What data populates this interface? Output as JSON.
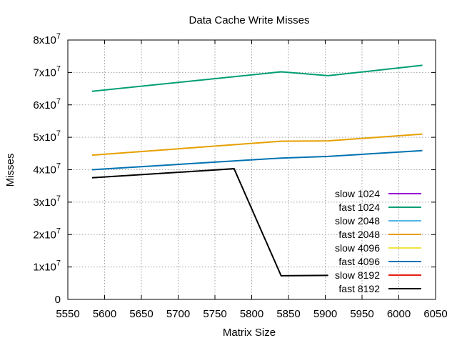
{
  "chart_data": {
    "type": "line",
    "title": "Data Cache Write Misses",
    "xlabel": "Matrix Size",
    "ylabel": "Misses",
    "xlim": [
      5550,
      6050
    ],
    "ylim": [
      0,
      80000000
    ],
    "xticks": [
      5550,
      5600,
      5650,
      5700,
      5750,
      5800,
      5850,
      5900,
      5950,
      6000,
      6050
    ],
    "xtick_labels": [
      "5550",
      "5600",
      "5650",
      "5700",
      "5750",
      "5800",
      "5850",
      "5900",
      "5950",
      "6000",
      "6050"
    ],
    "yticks": [
      {
        "value": 0,
        "mantissa": "0",
        "base": "",
        "exp": ""
      },
      {
        "value": 10000000,
        "mantissa": "1",
        "base": "x10",
        "exp": "7"
      },
      {
        "value": 20000000,
        "mantissa": "2",
        "base": "x10",
        "exp": "7"
      },
      {
        "value": 30000000,
        "mantissa": "3",
        "base": "x10",
        "exp": "7"
      },
      {
        "value": 40000000,
        "mantissa": "4",
        "base": "x10",
        "exp": "7"
      },
      {
        "value": 50000000,
        "mantissa": "5",
        "base": "x10",
        "exp": "7"
      },
      {
        "value": 60000000,
        "mantissa": "6",
        "base": "x10",
        "exp": "7"
      },
      {
        "value": 70000000,
        "mantissa": "7",
        "base": "x10",
        "exp": "7"
      },
      {
        "value": 80000000,
        "mantissa": "8",
        "base": "x10",
        "exp": "7"
      }
    ],
    "grid": true,
    "legend_position": "bottom-right",
    "series": [
      {
        "name": "slow 1024",
        "color": "#9400d3",
        "x": [],
        "y": []
      },
      {
        "name": "fast 1024",
        "color": "#009e73",
        "x": [
          5583,
          5840,
          5904,
          6032
        ],
        "y": [
          64200000,
          70200000,
          69000000,
          72200000
        ]
      },
      {
        "name": "slow 2048",
        "color": "#56b4e9",
        "x": [],
        "y": []
      },
      {
        "name": "fast 2048",
        "color": "#e69f00",
        "x": [
          5583,
          5840,
          5904,
          6032
        ],
        "y": [
          44500000,
          48800000,
          48900000,
          51000000
        ]
      },
      {
        "name": "slow 4096",
        "color": "#f0e442",
        "x": [],
        "y": []
      },
      {
        "name": "fast 4096",
        "color": "#0072b2",
        "x": [
          5583,
          5840,
          5904,
          6032
        ],
        "y": [
          40000000,
          43600000,
          44100000,
          45900000
        ]
      },
      {
        "name": "slow 8192",
        "color": "#e51e10",
        "x": [],
        "y": []
      },
      {
        "name": "fast 8192",
        "color": "#000000",
        "x": [
          5583,
          5776,
          5840,
          5904
        ],
        "y": [
          37500000,
          40300000,
          7300000,
          7400000
        ]
      }
    ]
  }
}
